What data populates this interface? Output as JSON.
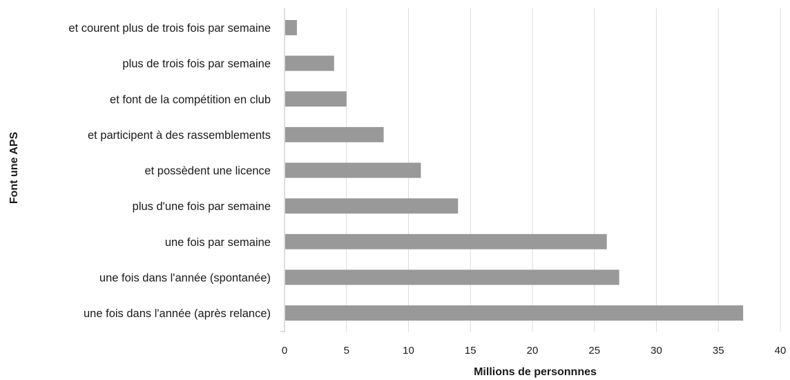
{
  "chart_data": {
    "type": "bar",
    "orientation": "horizontal",
    "categories": [
      "et courent plus de trois fois par semaine",
      "plus de trois fois par semaine",
      "et font de la compétition en club",
      "et participent à des rassemblements",
      "et possèdent une licence",
      "plus d'une fois par semaine",
      "une fois par semaine",
      "une fois dans l'année (spontanée)",
      "une fois dans l'année (après relance)"
    ],
    "values": [
      1,
      4,
      5,
      8,
      11,
      14,
      26,
      27,
      37
    ],
    "xlabel": "Millions de personnnes",
    "ylabel": "Font une APS",
    "xlim": [
      0,
      40
    ],
    "xticks": [
      0,
      5,
      10,
      15,
      20,
      25,
      30,
      35,
      40
    ],
    "xtick_labels": [
      "0",
      "5",
      "10",
      "15",
      "20",
      "25",
      "30",
      "35",
      "40"
    ],
    "grid": true,
    "colors": {
      "bar": "#999999",
      "grid": "#dcdcdc",
      "text": "#1a1a1a"
    }
  }
}
